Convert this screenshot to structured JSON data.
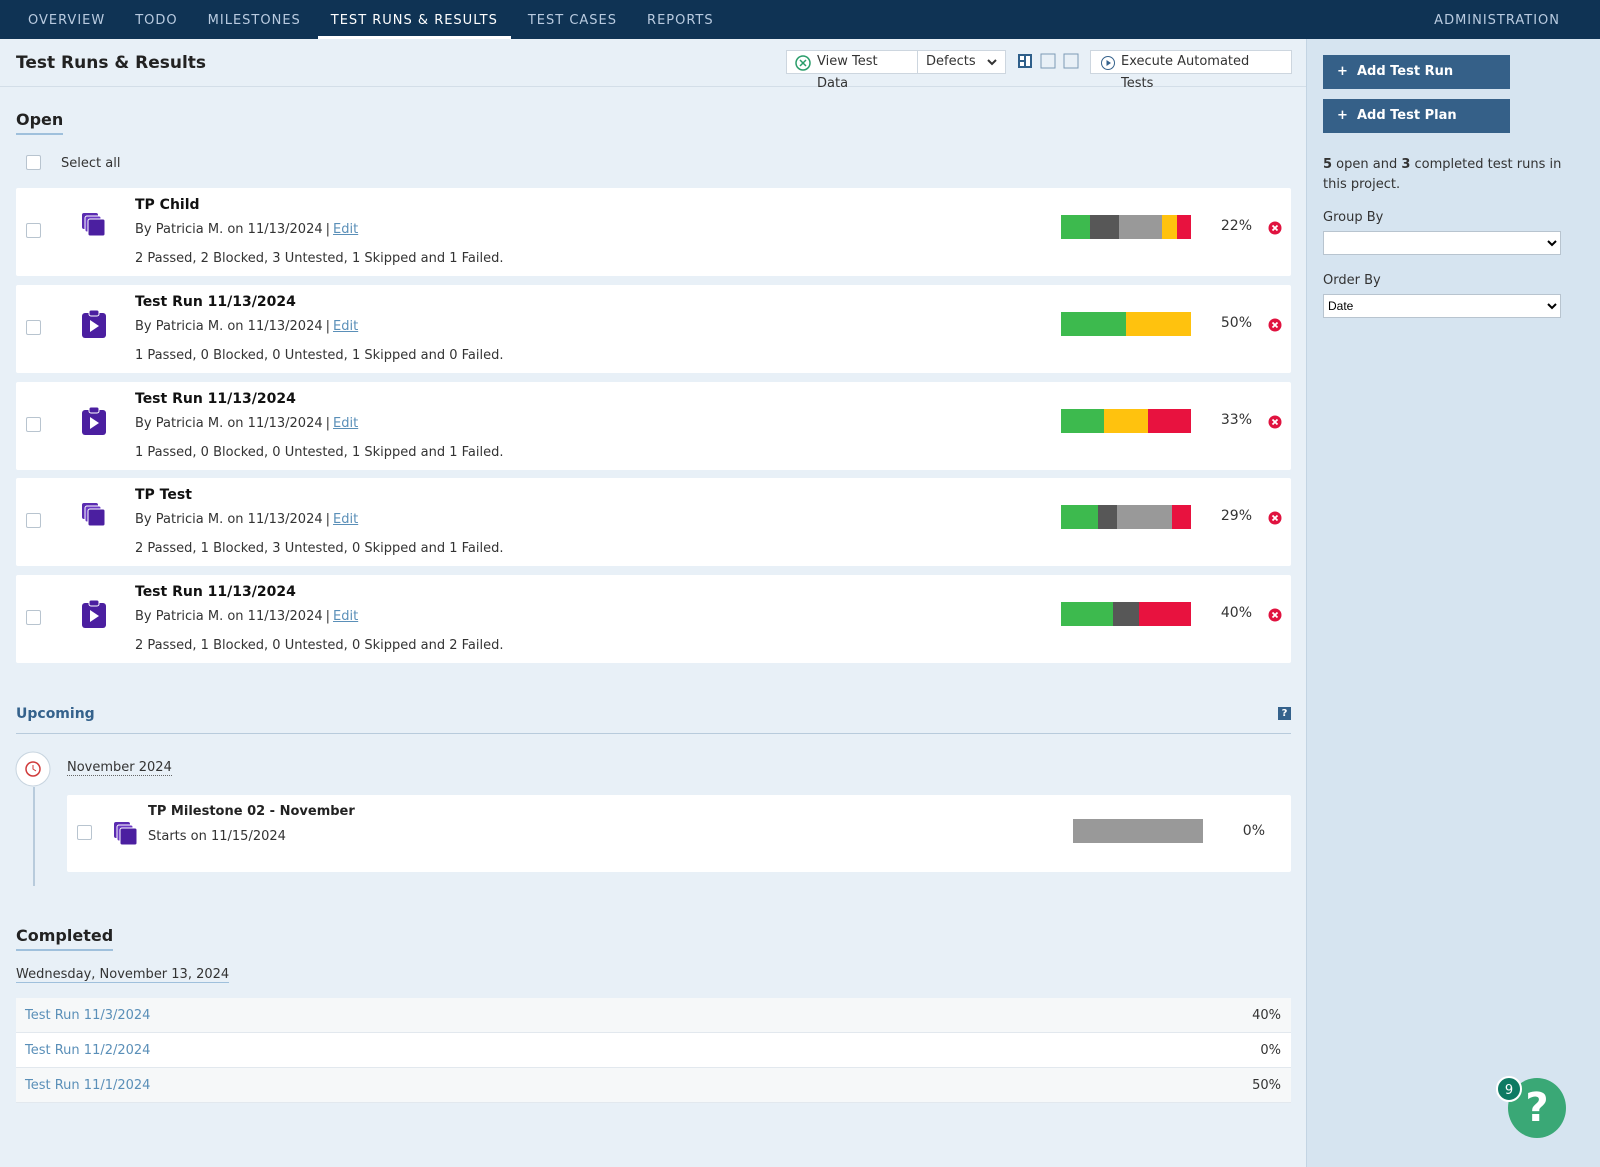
{
  "nav": {
    "tabs": [
      "OVERVIEW",
      "TODO",
      "MILESTONES",
      "TEST RUNS & RESULTS",
      "TEST CASES",
      "REPORTS"
    ],
    "active": 3,
    "admin": "ADMINISTRATION"
  },
  "header": {
    "title": "Test Runs & Results",
    "view_test_data": "View Test Data",
    "defects": "Defects",
    "execute": "Execute Automated Tests"
  },
  "status_colors": {
    "passed": "#3dba4e",
    "blocked": "#575757",
    "untested": "#999999",
    "skipped": "#ffc20e",
    "failed": "#e8123f"
  },
  "open": {
    "title": "Open",
    "select_all": "Select all",
    "runs": [
      {
        "name": "TP Child",
        "kind": "plan",
        "by": "By Patricia M. on 11/13/2024",
        "sep": "|",
        "edit": "Edit",
        "summary": "2 Passed, 2 Blocked, 3 Untested, 1 Skipped and 1 Failed.",
        "segments": {
          "passed": 2,
          "blocked": 2,
          "untested": 3,
          "skipped": 1,
          "failed": 1
        },
        "percent": "22%"
      },
      {
        "name": "Test Run 11/13/2024",
        "kind": "run",
        "by": "By Patricia M. on 11/13/2024",
        "sep": "|",
        "edit": "Edit",
        "summary": "1 Passed, 0 Blocked, 0 Untested, 1 Skipped and 0 Failed.",
        "segments": {
          "passed": 1,
          "blocked": 0,
          "untested": 0,
          "skipped": 1,
          "failed": 0
        },
        "percent": "50%"
      },
      {
        "name": "Test Run 11/13/2024",
        "kind": "run",
        "by": "By Patricia M. on 11/13/2024",
        "sep": "|",
        "edit": "Edit",
        "summary": "1 Passed, 0 Blocked, 0 Untested, 1 Skipped and 1 Failed.",
        "segments": {
          "passed": 1,
          "blocked": 0,
          "untested": 0,
          "skipped": 1,
          "failed": 1
        },
        "percent": "33%"
      },
      {
        "name": "TP Test",
        "kind": "plan",
        "by": "By Patricia M. on 11/13/2024",
        "sep": "|",
        "edit": "Edit",
        "summary": "2 Passed, 1 Blocked, 3 Untested, 0 Skipped and 1 Failed.",
        "segments": {
          "passed": 2,
          "blocked": 1,
          "untested": 3,
          "skipped": 0,
          "failed": 1
        },
        "percent": "29%"
      },
      {
        "name": "Test Run 11/13/2024",
        "kind": "run",
        "by": "By Patricia M. on 11/13/2024",
        "sep": "|",
        "edit": "Edit",
        "summary": "2 Passed, 1 Blocked, 0 Untested, 0 Skipped and 2 Failed.",
        "segments": {
          "passed": 2,
          "blocked": 1,
          "untested": 0,
          "skipped": 0,
          "failed": 2
        },
        "percent": "40%"
      }
    ]
  },
  "upcoming": {
    "title": "Upcoming",
    "month": "November 2024",
    "milestone": {
      "name": "TP Milestone 02 - November",
      "starts": "Starts on 11/15/2024",
      "percent": "0%"
    }
  },
  "completed": {
    "title": "Completed",
    "date": "Wednesday, November 13, 2024",
    "rows": [
      {
        "name": "Test Run 11/3/2024",
        "percent": "40%"
      },
      {
        "name": "Test Run 11/2/2024",
        "percent": "0%"
      },
      {
        "name": "Test Run 11/1/2024",
        "percent": "50%"
      }
    ]
  },
  "sidebar": {
    "add_run": "Add Test Run",
    "add_plan": "Add Test Plan",
    "summary": [
      "5",
      " open and ",
      "3",
      " completed test runs in this project."
    ],
    "group_by": "Group By",
    "order_by": "Order By",
    "order_value": "Date"
  },
  "help": {
    "badge": "9",
    "icon": "?"
  }
}
